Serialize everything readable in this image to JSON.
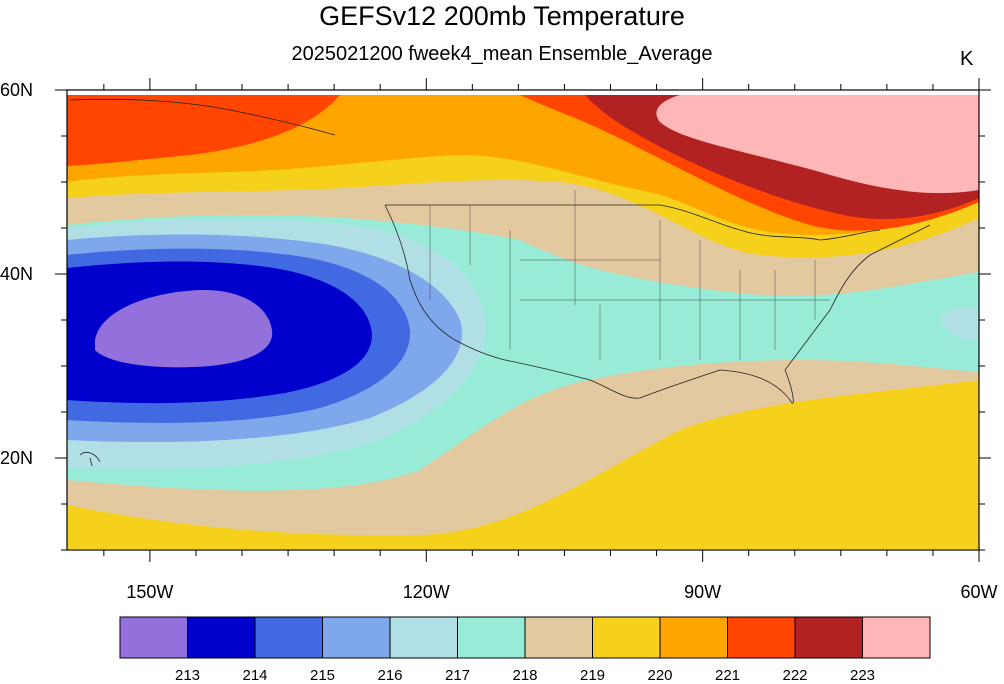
{
  "title": "GEFSv12 200mb Temperature",
  "subtitle": "2025021200 fweek4_mean Ensemble_Average",
  "units": "K",
  "map": {
    "projection": "cylindrical equidistant",
    "lon_range": [
      -159,
      -60
    ],
    "lat_range": [
      10,
      60
    ],
    "xticks": [
      {
        "lon": -150,
        "label": "150W"
      },
      {
        "lon": -120,
        "label": "120W"
      },
      {
        "lon": -90,
        "label": "90W"
      },
      {
        "lon": -60,
        "label": "60W"
      }
    ],
    "yticks": [
      {
        "lat": 60,
        "label": "60N"
      },
      {
        "lat": 40,
        "label": "40N"
      },
      {
        "lat": 20,
        "label": "20N"
      }
    ]
  },
  "colorbar": {
    "colors": [
      "#9370db",
      "#0000cd",
      "#4169e1",
      "#7fa7ec",
      "#b0e0e6",
      "#98ebd6",
      "#e3c9a0",
      "#f5d11b",
      "#ffa500",
      "#ff4500",
      "#b22222",
      "#ffb6b6"
    ],
    "labels": [
      "213",
      "214",
      "215",
      "216",
      "217",
      "218",
      "219",
      "220",
      "221",
      "222",
      "223"
    ]
  }
}
